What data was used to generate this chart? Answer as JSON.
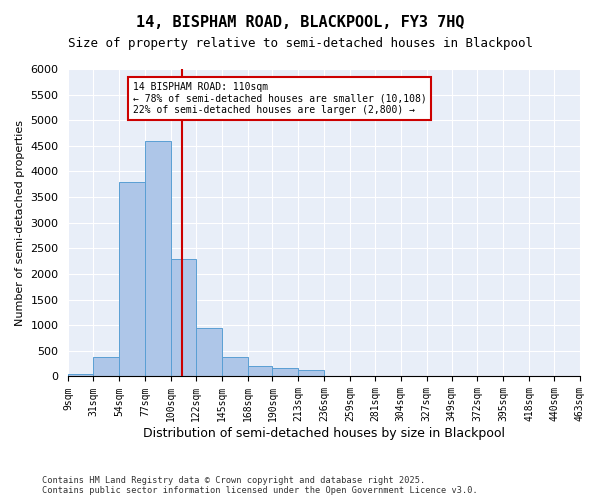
{
  "title1": "14, BISPHAM ROAD, BLACKPOOL, FY3 7HQ",
  "title2": "Size of property relative to semi-detached houses in Blackpool",
  "xlabel": "Distribution of semi-detached houses by size in Blackpool",
  "ylabel": "Number of semi-detached properties",
  "property_size": 110,
  "annotation_title": "14 BISPHAM ROAD: 110sqm",
  "annotation_line1": "← 78% of semi-detached houses are smaller (10,108)",
  "annotation_line2": "22% of semi-detached houses are larger (2,800) →",
  "footer1": "Contains HM Land Registry data © Crown copyright and database right 2025.",
  "footer2": "Contains public sector information licensed under the Open Government Licence v3.0.",
  "bar_color": "#aec6e8",
  "bar_edge_color": "#5a9fd4",
  "line_color": "#cc0000",
  "annotation_box_color": "#cc0000",
  "background_color": "#e8eef8",
  "bins": [
    9,
    31,
    54,
    77,
    100,
    122,
    145,
    168,
    190,
    213,
    236,
    259,
    281,
    304,
    327,
    349,
    372,
    395,
    418,
    440,
    463
  ],
  "bin_labels": [
    "9sqm",
    "31sqm",
    "54sqm",
    "77sqm",
    "100sqm",
    "122sqm",
    "145sqm",
    "168sqm",
    "190sqm",
    "213sqm",
    "236sqm",
    "259sqm",
    "281sqm",
    "304sqm",
    "327sqm",
    "349sqm",
    "372sqm",
    "395sqm",
    "418sqm",
    "440sqm",
    "463sqm"
  ],
  "counts": [
    50,
    380,
    3800,
    4600,
    2300,
    950,
    380,
    200,
    160,
    120,
    0,
    0,
    0,
    0,
    0,
    0,
    0,
    0,
    0,
    0
  ],
  "ylim": [
    0,
    6000
  ],
  "yticks": [
    0,
    500,
    1000,
    1500,
    2000,
    2500,
    3000,
    3500,
    4000,
    4500,
    5000,
    5500,
    6000
  ]
}
